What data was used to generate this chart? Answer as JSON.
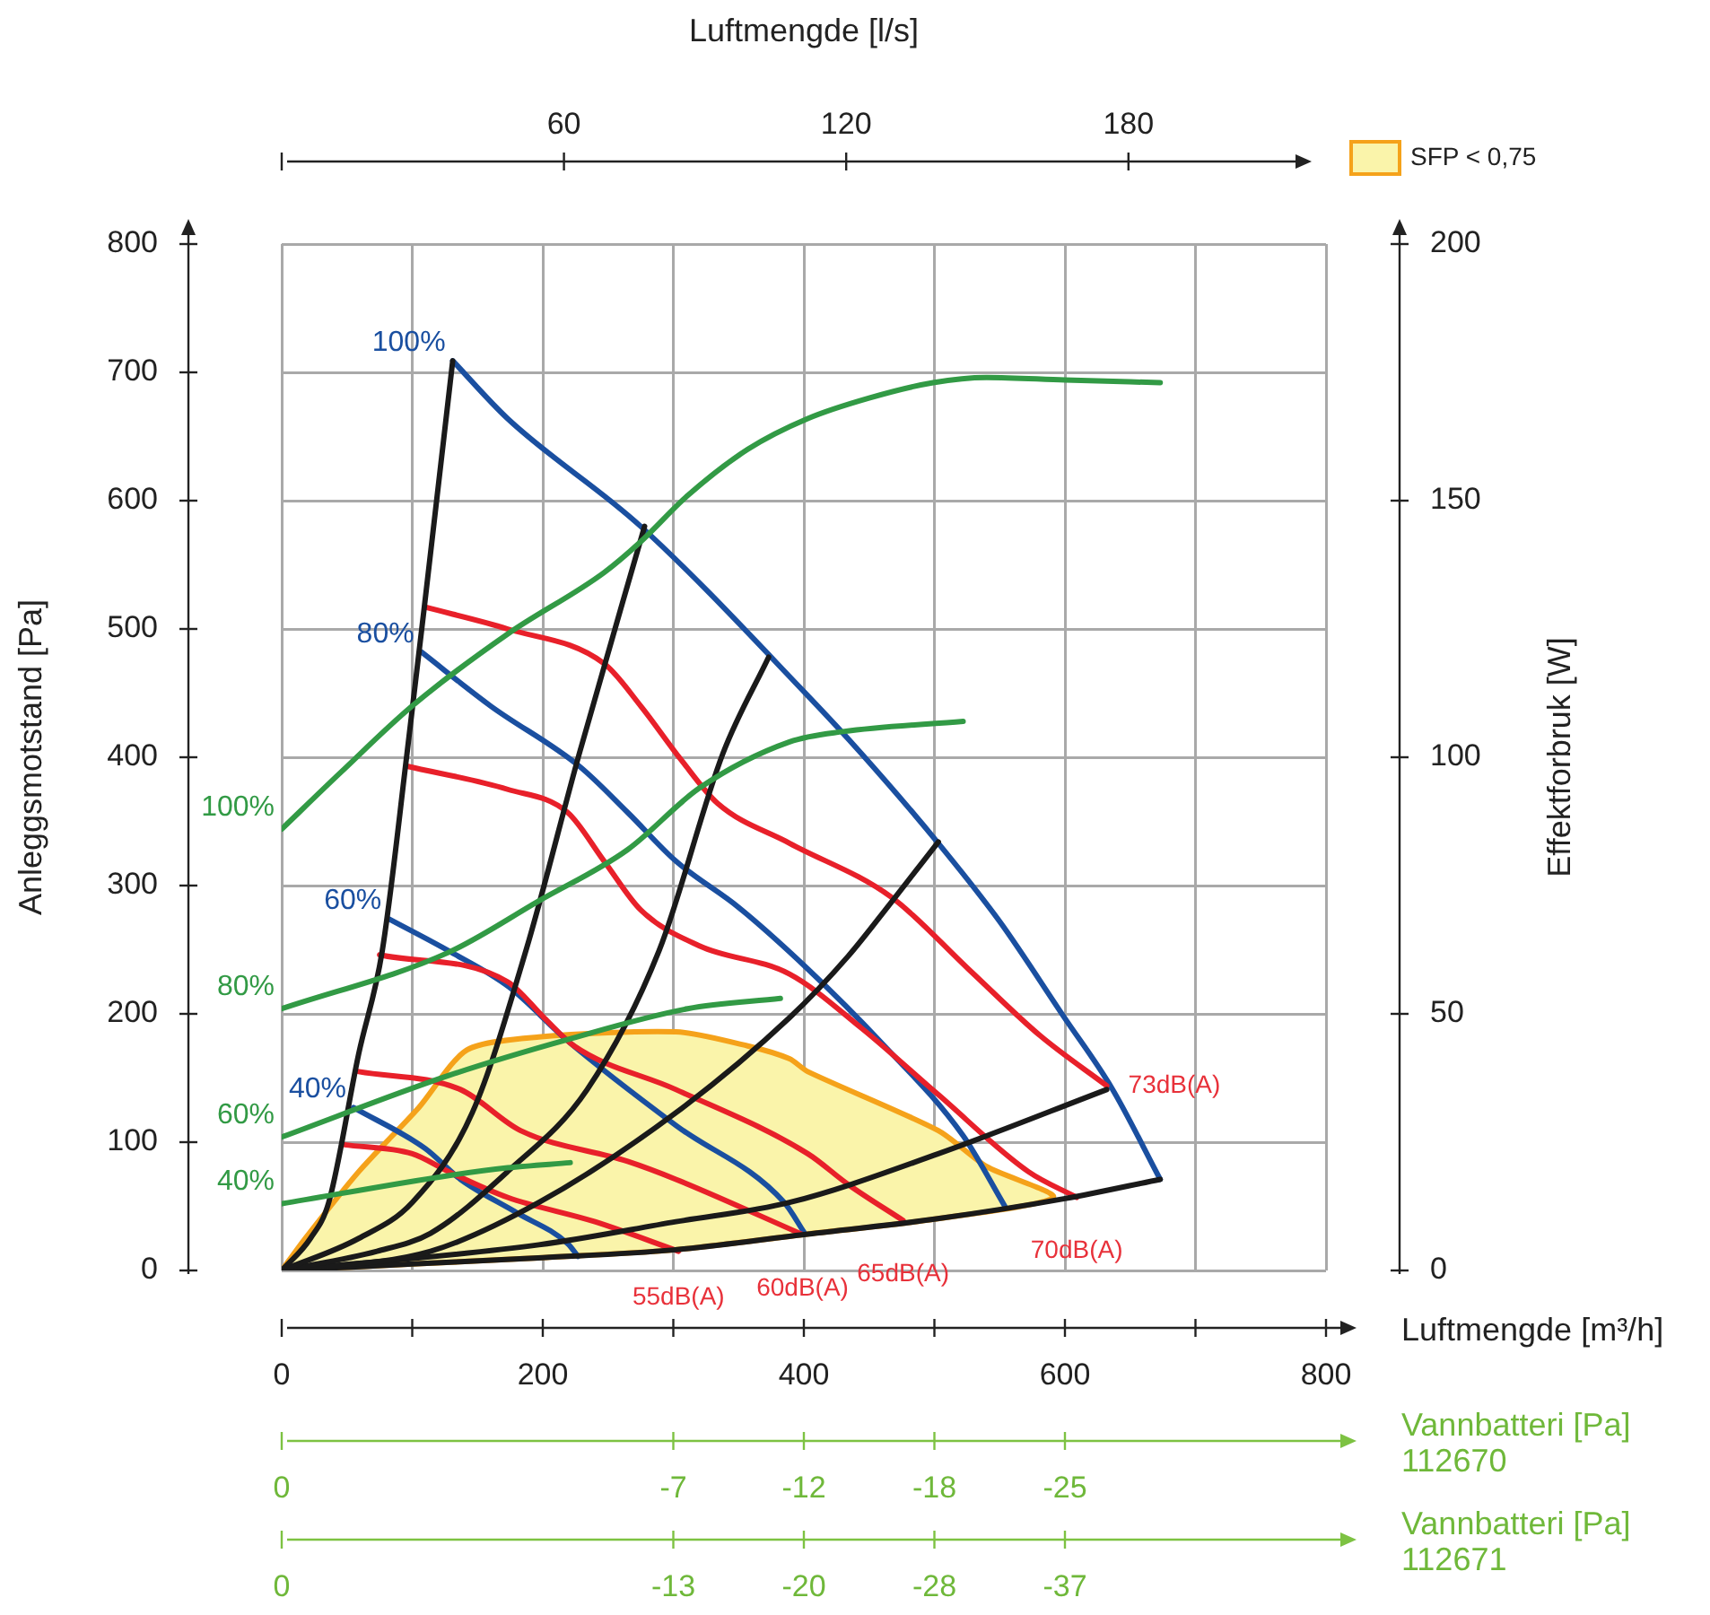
{
  "chart_data": {
    "type": "line",
    "xlabel": "Luftmengde [m³/h]",
    "ylabel": "Anleggsmotstand [Pa]",
    "y2label": "Effektforbruk [W]",
    "x2label": "Luftmengde [l/s]",
    "xlim": [
      0,
      800
    ],
    "xticks": [
      0,
      {
        "value": 100,
        "label": null
      },
      200,
      {
        "value": 300,
        "label": null
      },
      400,
      {
        "value": 500,
        "label": null
      },
      600,
      {
        "value": 700,
        "label": null
      },
      800
    ],
    "ylim": [
      0,
      800
    ],
    "yticks": [
      0,
      100,
      200,
      300,
      400,
      500,
      600,
      700,
      800
    ],
    "y2lim": [
      0,
      200
    ],
    "y2ticks": [
      0,
      50,
      100,
      150,
      200
    ],
    "x2lim": [
      0,
      222
    ],
    "x2ticks": [
      {
        "value": 0,
        "label": null
      },
      60,
      120,
      180
    ],
    "grid": true,
    "legend": "top right",
    "series": [
      {
        "type": "area",
        "name": "SFP < 0,75",
        "color": "#faf4aa",
        "x": [
          0,
          18,
          59,
          105,
          142,
          197,
          302,
          357,
          389,
          403,
          503,
          540,
          591,
          500,
          400,
          300,
          200,
          100,
          0
        ],
        "values": [
          0,
          25,
          77,
          127,
          172,
          182,
          186,
          175,
          165,
          155,
          109,
          81,
          57,
          40,
          28,
          16,
          10,
          5,
          0
        ]
      },
      {
        "name": "100%",
        "color": "#329a45",
        "axis": "y2",
        "x": [
          0,
          45,
          100,
          173,
          247,
          275,
          311,
          357,
          403,
          450,
          499,
          540,
          600,
          673
        ],
        "values": [
          86,
          97,
          110,
          124,
          136,
          142,
          151,
          160,
          166,
          170,
          173,
          174,
          173.5,
          173
        ]
      },
      {
        "name": "80%",
        "color": "#329a45",
        "axis": "y2",
        "x": [
          0,
          128,
          197,
          265,
          320,
          389,
          430,
          522
        ],
        "values": [
          51,
          62,
          72,
          82,
          94,
          103,
          105,
          107
        ]
      },
      {
        "name": "60%",
        "color": "#329a45",
        "axis": "y2",
        "x": [
          0,
          128,
          219,
          311,
          382
        ],
        "values": [
          26,
          38,
          45,
          51,
          53
        ]
      },
      {
        "name": "40%",
        "color": "#329a45",
        "axis": "y2",
        "x": [
          0,
          128,
          173,
          221
        ],
        "values": [
          13,
          18.5,
          20,
          21
        ]
      },
      {
        "color": "#1a1a1a",
        "x": [
          0,
          22,
          36,
          59,
          77,
          96,
          109,
          131
        ],
        "values": [
          0,
          25,
          53,
          169,
          249,
          403,
          515,
          709
        ]
      },
      {
        "color": "#1a1a1a",
        "x": [
          0,
          59,
          100,
          146,
          187,
          228,
          278
        ],
        "values": [
          0,
          25,
          53,
          123,
          249,
          403,
          580
        ]
      },
      {
        "color": "#1a1a1a",
        "x": [
          0,
          73,
          114,
          173,
          234,
          289,
          338,
          373
        ],
        "values": [
          0,
          15,
          29,
          77,
          141,
          249,
          403,
          478
        ]
      },
      {
        "color": "#1a1a1a",
        "x": [
          0,
          114,
          197,
          302,
          389,
          434,
          467,
          503
        ],
        "values": [
          0,
          15,
          53,
          123,
          197,
          245,
          287,
          334
        ]
      },
      {
        "color": "#1a1a1a",
        "x": [
          0,
          197,
          302,
          389,
          503,
          632
        ],
        "values": [
          0,
          20,
          38,
          53,
          91,
          141
        ]
      },
      {
        "color": "#1a1a1a",
        "x": [
          0,
          100,
          200,
          300,
          400,
          500,
          600,
          673
        ],
        "values": [
          0,
          5,
          10,
          16,
          28,
          40,
          56,
          71
        ]
      },
      {
        "color": "#e8202a",
        "x": [
          48,
          100,
          128,
          173,
          240,
          304
        ],
        "values": [
          98,
          91,
          77,
          57,
          38,
          15
        ]
      },
      {
        "color": "#e8202a",
        "x": [
          59,
          137,
          183,
          265,
          302,
          399
        ],
        "values": [
          155,
          141,
          109,
          85,
          71,
          28
        ]
      },
      {
        "color": "#e8202a",
        "x": [
          75,
          173,
          201,
          224,
          302,
          403,
          434,
          476
        ],
        "values": [
          246,
          225,
          197,
          175,
          141,
          91,
          67,
          39
        ]
      },
      {
        "color": "#e8202a",
        "x": [
          96,
          173,
          219,
          247,
          275,
          320,
          389,
          444,
          503,
          572,
          609
        ],
        "values": [
          393,
          375,
          357,
          319,
          281,
          253,
          231,
          189,
          137,
          77,
          57
        ]
      },
      {
        "color": "#e8202a",
        "x": [
          110,
          173,
          247,
          275,
          306,
          334,
          389,
          467,
          526,
          581,
          632
        ],
        "values": [
          517,
          500,
          473,
          440,
          398,
          364,
          333,
          291,
          235,
          183,
          144
        ]
      },
      {
        "name": "100%",
        "color": "#1a4fa0",
        "x": [
          131,
          173,
          275,
          403,
          444,
          503,
          550,
          599,
          636,
          673
        ],
        "values": [
          709,
          664,
          580,
          448,
          403,
          333,
          272,
          198,
          142,
          71
        ]
      },
      {
        "name": "80%",
        "color": "#1a4fa0",
        "x": [
          107,
          160,
          228,
          265,
          302,
          350,
          403,
          458,
          522,
          554
        ],
        "values": [
          482,
          440,
          393,
          357,
          319,
          283,
          235,
          179,
          105,
          50
        ]
      },
      {
        "name": "60%",
        "color": "#1a4fa0",
        "x": [
          82,
          128,
          174,
          219,
          302,
          385,
          400
        ],
        "values": [
          274,
          249,
          221,
          179,
          113,
          53,
          30
        ]
      },
      {
        "name": "40%",
        "color": "#1a4fa0",
        "x": [
          55,
          110,
          137,
          180,
          219,
          227
        ],
        "values": [
          127,
          95,
          71,
          45,
          21,
          11
        ]
      }
    ],
    "annotations": [
      {
        "text": "55dB(A)",
        "x": 304,
        "y": 15
      },
      {
        "text": "60dB(A)",
        "x": 399,
        "y": 28
      },
      {
        "text": "65dB(A)",
        "x": 476,
        "y": 39
      },
      {
        "text": "70dB(A)",
        "x": 609,
        "y": 57
      },
      {
        "text": "73dB(A)",
        "x": 632,
        "y": 144
      },
      "Vannbatteri [Pa]\n112670",
      {
        "text": "0",
        "x": 0
      },
      {
        "text": "-7",
        "x": 300
      },
      {
        "text": "-12",
        "x": 400
      },
      {
        "text": "-18",
        "x": 500
      },
      {
        "text": "-25",
        "x": 600
      },
      "Vannbatteri [Pa]\n112671",
      {
        "text": "0",
        "x": 0
      },
      {
        "text": "-13",
        "x": 300
      },
      {
        "text": "-20",
        "x": 400
      },
      {
        "text": "-28",
        "x": 500
      },
      {
        "text": "-37",
        "x": 600
      }
    ]
  }
}
